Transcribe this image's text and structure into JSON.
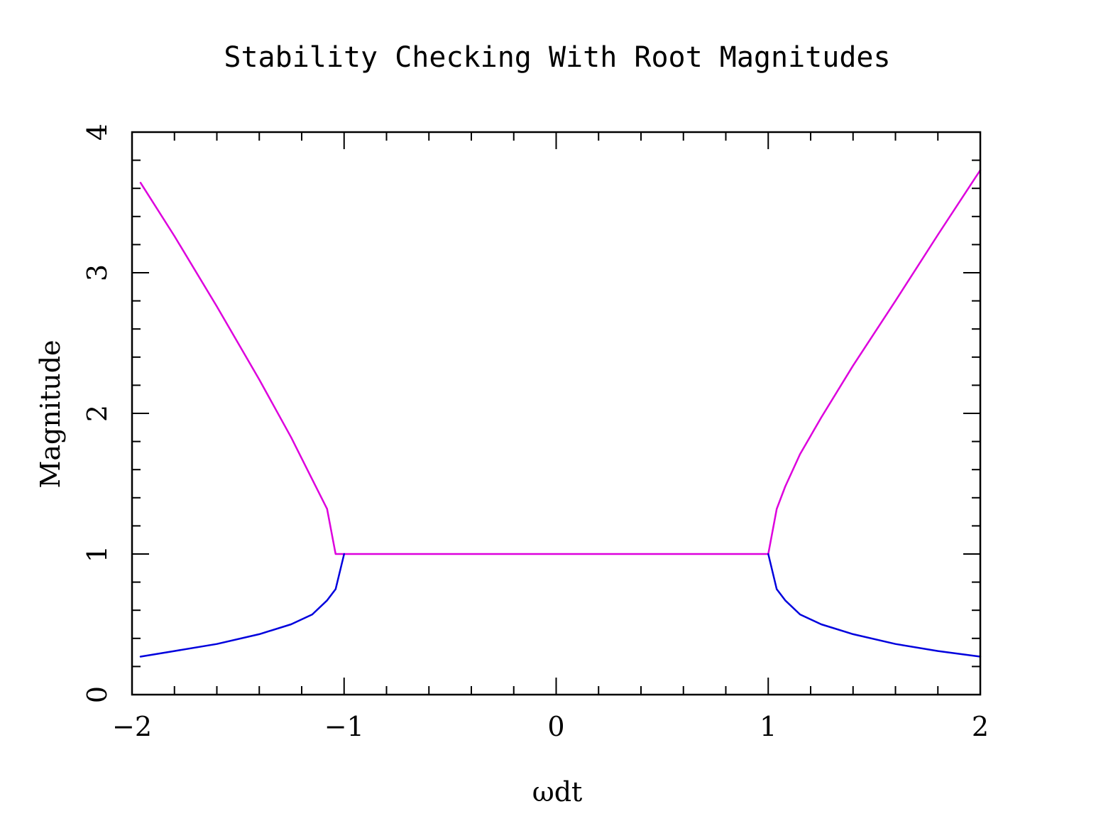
{
  "chart_data": {
    "type": "line",
    "title": "Stability Checking With Root Magnitudes",
    "xlabel": "ωdt",
    "ylabel": "Magnitude",
    "xlim": [
      -2,
      2
    ],
    "ylim": [
      0,
      4
    ],
    "x_ticks": [
      -2,
      -1,
      0,
      1,
      2
    ],
    "x_tick_labels": [
      "−2",
      "−1",
      "0",
      "1",
      "2"
    ],
    "y_ticks": [
      0,
      1,
      2,
      3,
      4
    ],
    "y_tick_labels": [
      "0",
      "1",
      "2",
      "3",
      "4"
    ],
    "x_minor_step": 0.2,
    "y_minor_step": 0.2,
    "grid": false,
    "colors": {
      "upper": "#dd00dd",
      "lower": "#0000dd",
      "frame": "#000000"
    },
    "series": [
      {
        "color": "#dd00dd",
        "x": [
          -1.96,
          -1.8,
          -1.6,
          -1.4,
          -1.25,
          -1.15,
          -1.08,
          -1.04,
          -1.0
        ],
        "y": [
          3.64,
          3.26,
          2.76,
          2.24,
          1.83,
          1.53,
          1.32,
          1.0,
          1.0
        ]
      },
      {
        "color": "#dd00dd",
        "x": [
          -1.0,
          1.0
        ],
        "y": [
          1.0,
          1.0
        ]
      },
      {
        "color": "#dd00dd",
        "x": [
          1.0,
          1.04,
          1.08,
          1.15,
          1.25,
          1.4,
          1.6,
          1.8,
          2.0
        ],
        "y": [
          1.0,
          1.32,
          1.48,
          1.71,
          1.97,
          2.34,
          2.8,
          3.27,
          3.73
        ]
      },
      {
        "color": "#0000dd",
        "x": [
          -1.96,
          -1.8,
          -1.6,
          -1.4,
          -1.25,
          -1.15,
          -1.08,
          -1.04,
          -1.0
        ],
        "y": [
          0.27,
          0.31,
          0.36,
          0.43,
          0.5,
          0.57,
          0.67,
          0.75,
          1.0
        ]
      },
      {
        "color": "#0000dd",
        "x": [
          1.0,
          1.04,
          1.08,
          1.15,
          1.25,
          1.4,
          1.6,
          1.8,
          2.0
        ],
        "y": [
          1.0,
          0.75,
          0.67,
          0.57,
          0.5,
          0.43,
          0.36,
          0.31,
          0.27
        ]
      }
    ]
  }
}
